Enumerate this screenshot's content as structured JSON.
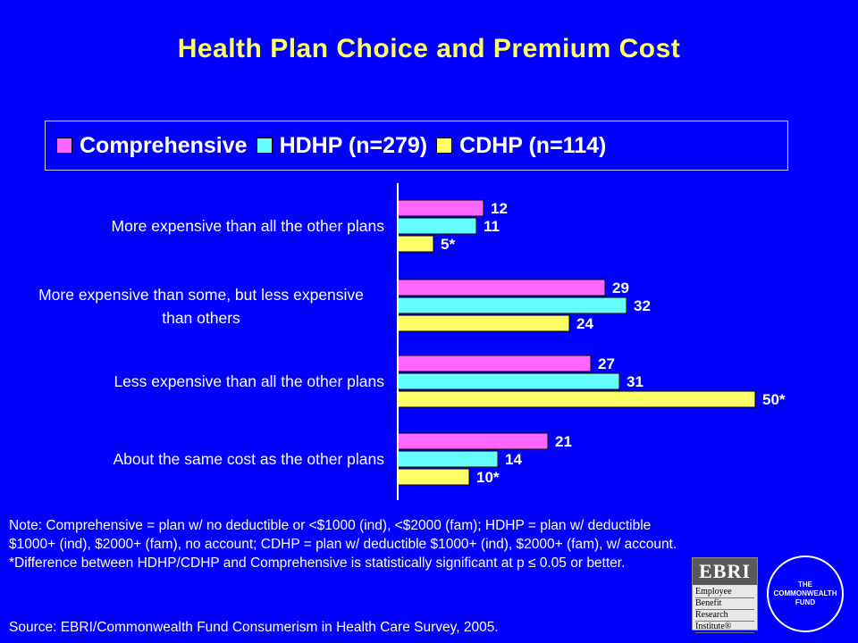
{
  "header": {
    "title": "Health Plan Choice and Premium Cost"
  },
  "colors": {
    "background": "#0000ff",
    "title": "#ffff66",
    "comprehensive": "#ff66ff",
    "hdhp": "#66ffff",
    "cdhp": "#ffff66"
  },
  "chart_data": {
    "type": "bar",
    "orientation": "horizontal",
    "categories": [
      "More expensive than all the other plans",
      "More expensive than some, but less expensive than others",
      "Less expensive than all the other plans",
      "About the same cost as the other plans"
    ],
    "series": [
      {
        "name": "Comprehensive",
        "values": [
          12,
          29,
          27,
          21
        ],
        "labels": [
          "12",
          "29",
          "27",
          "21"
        ]
      },
      {
        "name": "HDHP (n=279)",
        "values": [
          11,
          32,
          31,
          14
        ],
        "labels": [
          "11",
          "32",
          "31",
          "14"
        ]
      },
      {
        "name": "CDHP (n=114)",
        "values": [
          5,
          24,
          50,
          10
        ],
        "labels": [
          "5*",
          "24",
          "50*",
          "10*"
        ]
      }
    ],
    "xlim": [
      0,
      50
    ],
    "legend": "top"
  },
  "notes": {
    "line1": "Note: Comprehensive = plan w/ no deductible or <$1000 (ind), <$2000 (fam); HDHP = plan w/ deductible $1000+ (ind), $2000+ (fam), no account; CDHP = plan w/ deductible $1000+ (ind), $2000+ (fam), w/ account.",
    "line2": "*Difference between HDHP/CDHP and Comprehensive is statistically significant at p ≤ 0.05 or better."
  },
  "source": "Source: EBRI/Commonwealth Fund Consumerism in Health Care Survey, 2005.",
  "logos": {
    "ebri": {
      "top": "EBRI",
      "lines": [
        "Employee",
        "Benefit",
        "Research",
        "Institute®"
      ]
    },
    "commonwealth": {
      "text": "THE COMMONWEALTH FUND"
    }
  }
}
